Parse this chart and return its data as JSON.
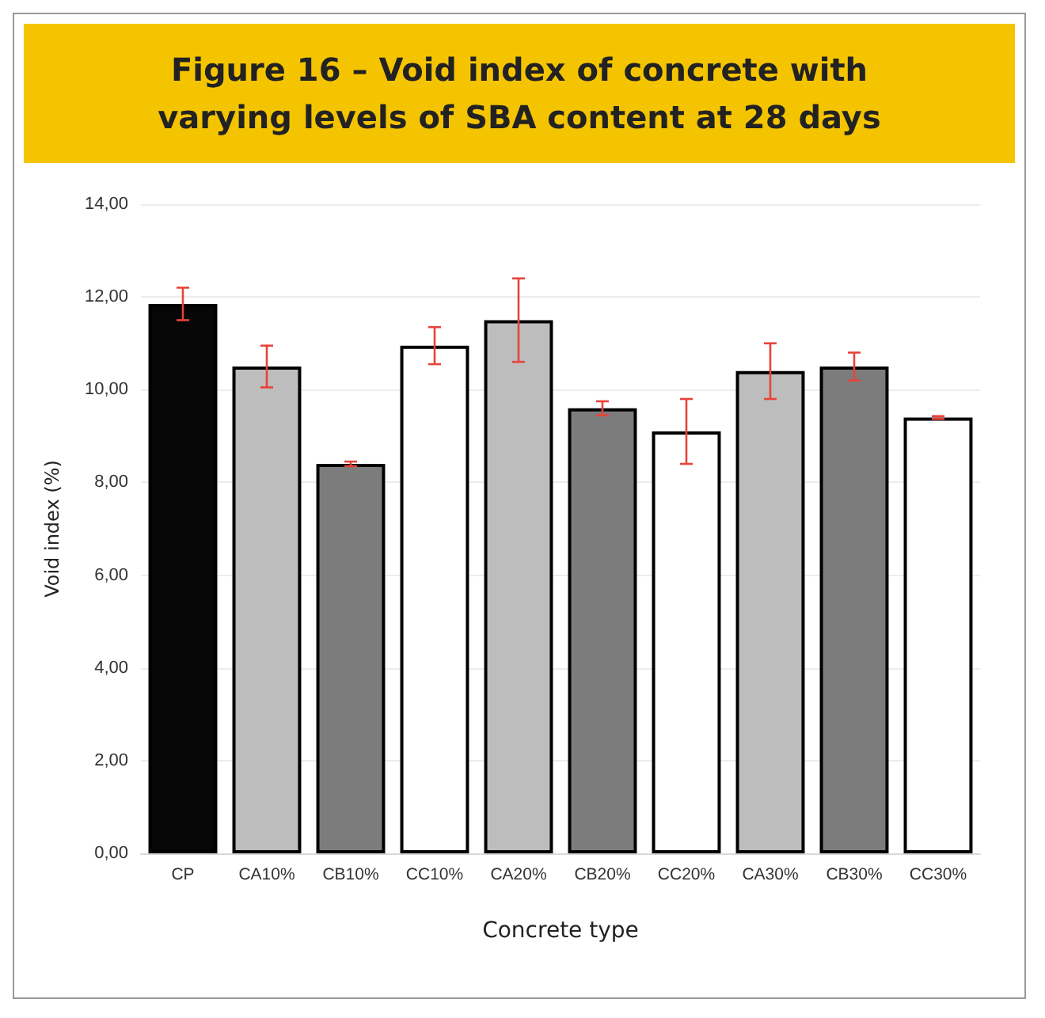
{
  "chart_data": {
    "type": "bar",
    "title": "Figure 16 – Void index of concrete with varying levels of SBA content at 28 days",
    "xlabel": "Concrete type",
    "ylabel": "Void index (%)",
    "categories": [
      "CP",
      "CA10%",
      "CB10%",
      "CC10%",
      "CA20%",
      "CB20%",
      "CC20%",
      "CA30%",
      "CB30%",
      "CC30%"
    ],
    "values": [
      11.85,
      10.5,
      8.4,
      10.95,
      11.5,
      9.6,
      9.1,
      10.4,
      10.5,
      9.4
    ],
    "colors": [
      "#060606",
      "#bdbdbd",
      "#7c7c7c",
      "#ffffff",
      "#bdbdbd",
      "#7c7c7c",
      "#ffffff",
      "#bdbdbd",
      "#7c7c7c",
      "#ffffff"
    ],
    "errors": [
      0.35,
      0.45,
      0.05,
      0.4,
      0.9,
      0.15,
      0.7,
      0.6,
      0.3,
      0.03
    ],
    "ylim": [
      0,
      14
    ],
    "yticks": [
      {
        "value": 0,
        "label": "0,00"
      },
      {
        "value": 2,
        "label": "2,00"
      },
      {
        "value": 4,
        "label": "4,00"
      },
      {
        "value": 6,
        "label": "6,00"
      },
      {
        "value": 8,
        "label": "8,00"
      },
      {
        "value": 10,
        "label": "10,00"
      },
      {
        "value": 12,
        "label": "12,00"
      },
      {
        "value": 14,
        "label": "14,00"
      }
    ],
    "grid": "y"
  }
}
